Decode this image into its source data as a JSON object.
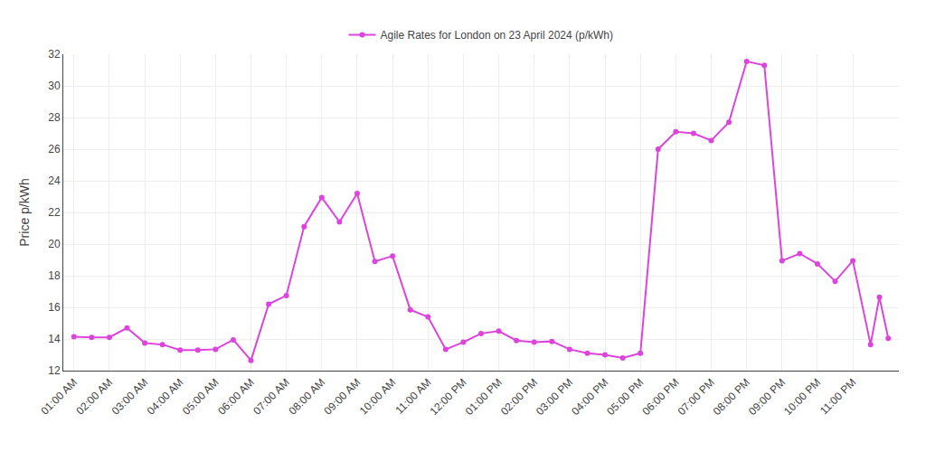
{
  "chart_data": {
    "type": "line",
    "ylabel": "Price p/kWh",
    "x": [
      0,
      0.5,
      1,
      1.5,
      2,
      2.5,
      3,
      3.5,
      4,
      4.5,
      5,
      5.5,
      6,
      6.5,
      7,
      7.5,
      8,
      8.5,
      9,
      9.5,
      10,
      10.5,
      11,
      11.5,
      12,
      12.5,
      13,
      13.5,
      14,
      14.5,
      15,
      15.5,
      16,
      16.5,
      17,
      17.5,
      18,
      18.5,
      19,
      19.5,
      20,
      20.5,
      21,
      21.5,
      22,
      22.5,
      22.75,
      23
    ],
    "series": [
      {
        "name": "Agile Rates for London on 23 April 2024 (p/kWh)",
        "color": "#dd44dd",
        "marker": "circle",
        "values": [
          14.15,
          14.1,
          14.1,
          14.7,
          13.75,
          13.65,
          13.3,
          13.3,
          13.35,
          13.95,
          12.65,
          16.2,
          16.75,
          21.1,
          22.95,
          21.4,
          23.2,
          18.9,
          19.25,
          15.85,
          15.4,
          13.35,
          13.8,
          14.35,
          14.5,
          13.9,
          13.8,
          13.85,
          13.35,
          13.1,
          13.0,
          12.8,
          13.1,
          26.0,
          27.1,
          27.0,
          26.55,
          27.7,
          31.55,
          31.3,
          18.95,
          19.4,
          18.75,
          17.65,
          18.95,
          13.65,
          16.65,
          14.05
        ]
      }
    ],
    "xlim": [
      -0.3,
      23.3
    ],
    "xticks": [
      {
        "value": 0,
        "label": "01:00 AM"
      },
      {
        "value": 1,
        "label": "02:00 AM"
      },
      {
        "value": 2,
        "label": "03:00 AM"
      },
      {
        "value": 3,
        "label": "04:00 AM"
      },
      {
        "value": 4,
        "label": "05:00 AM"
      },
      {
        "value": 5,
        "label": "06:00 AM"
      },
      {
        "value": 6,
        "label": "07:00 AM"
      },
      {
        "value": 7,
        "label": "08:00 AM"
      },
      {
        "value": 8,
        "label": "09:00 AM"
      },
      {
        "value": 9,
        "label": "10:00 AM"
      },
      {
        "value": 10,
        "label": "11:00 AM"
      },
      {
        "value": 11,
        "label": "12:00 PM"
      },
      {
        "value": 12,
        "label": "01:00 PM"
      },
      {
        "value": 13,
        "label": "02:00 PM"
      },
      {
        "value": 14,
        "label": "03:00 PM"
      },
      {
        "value": 15,
        "label": "04:00 PM"
      },
      {
        "value": 16,
        "label": "05:00 PM"
      },
      {
        "value": 17,
        "label": "06:00 PM"
      },
      {
        "value": 18,
        "label": "07:00 PM"
      },
      {
        "value": 19,
        "label": "08:00 PM"
      },
      {
        "value": 20,
        "label": "09:00 PM"
      },
      {
        "value": 21,
        "label": "10:00 PM"
      },
      {
        "value": 22,
        "label": "11:00 PM"
      }
    ],
    "ylim": [
      12,
      32
    ],
    "yticks": [
      12,
      14,
      16,
      18,
      20,
      22,
      24,
      26,
      28,
      30,
      32
    ],
    "grid": true,
    "legend": "top"
  }
}
